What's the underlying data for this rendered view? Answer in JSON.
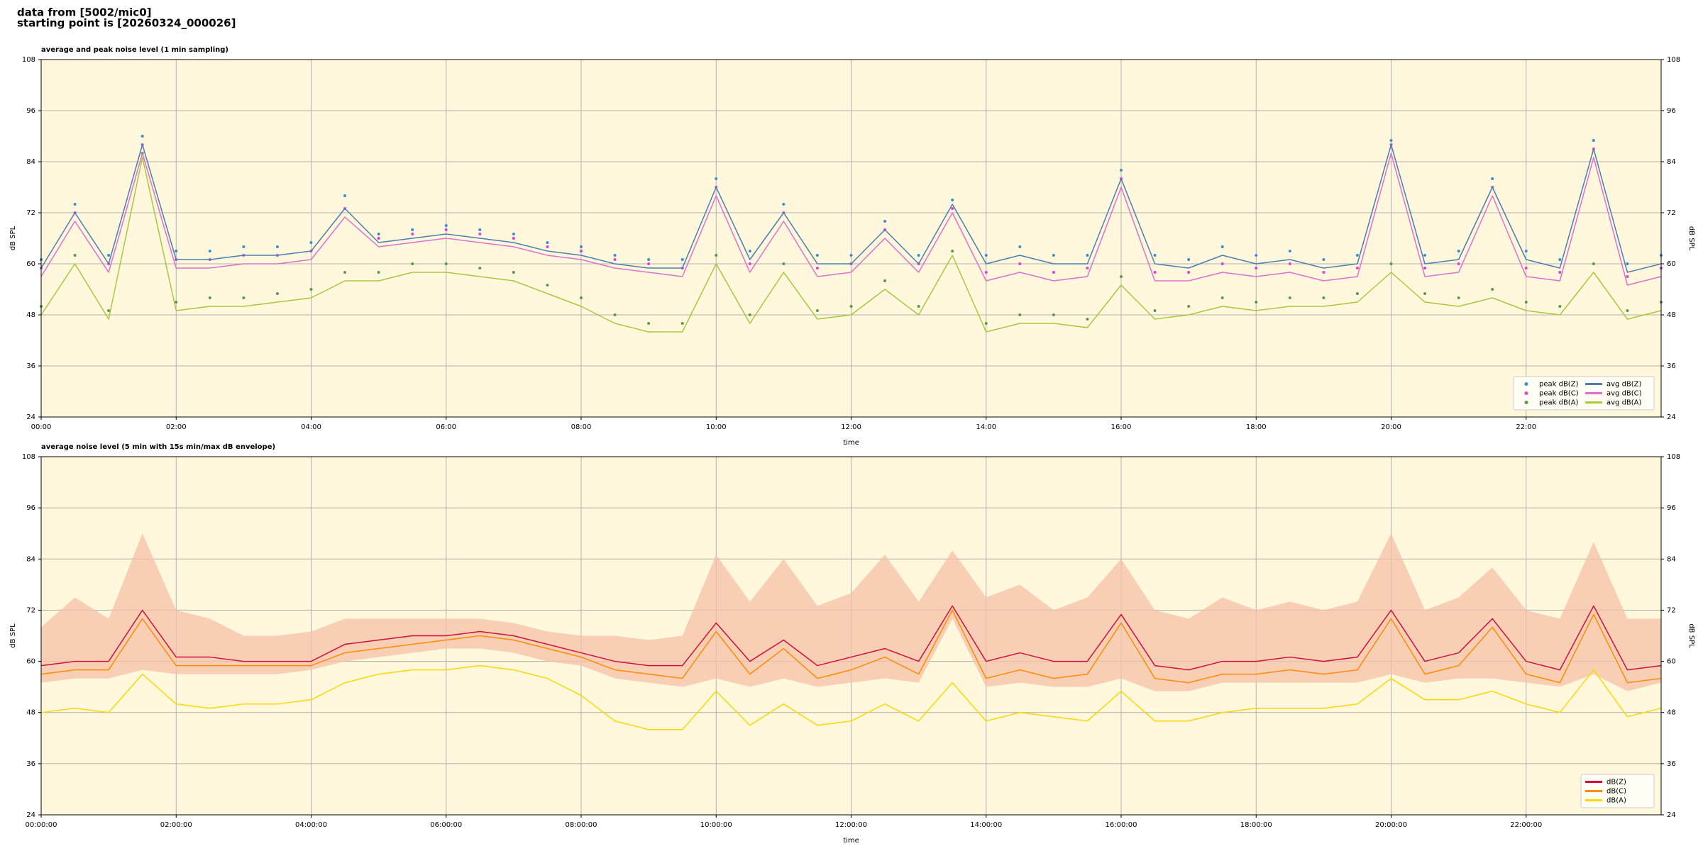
{
  "header": [
    "data from [5002/mic0]",
    "starting point is [20260324_000026]"
  ],
  "chart_data": [
    {
      "type": "line",
      "title": "average and peak noise level (1 min sampling)",
      "xlabel": "time",
      "ylabel": "dB SPL",
      "background": "#fff8dc",
      "grid": true,
      "legend": "lower right",
      "xlim": [
        0,
        24
      ],
      "ylim": [
        24,
        108
      ],
      "yticks": [
        24,
        36,
        48,
        60,
        72,
        84,
        96,
        108
      ],
      "xticks": [
        {
          "value": 0,
          "label": "00:00"
        },
        {
          "value": 2,
          "label": "02:00"
        },
        {
          "value": 4,
          "label": "04:00"
        },
        {
          "value": 6,
          "label": "06:00"
        },
        {
          "value": 8,
          "label": "08:00"
        },
        {
          "value": 10,
          "label": "10:00"
        },
        {
          "value": 12,
          "label": "12:00"
        },
        {
          "value": 14,
          "label": "14:00"
        },
        {
          "value": 16,
          "label": "16:00"
        },
        {
          "value": 18,
          "label": "18:00"
        },
        {
          "value": 20,
          "label": "20:00"
        },
        {
          "value": 22,
          "label": "22:00"
        }
      ],
      "x": [
        0,
        0.5,
        1,
        1.5,
        2,
        2.5,
        3,
        3.5,
        4,
        4.5,
        5,
        5.5,
        6,
        6.5,
        7,
        7.5,
        8,
        8.5,
        9,
        9.5,
        10,
        10.5,
        11,
        11.5,
        12,
        12.5,
        13,
        13.5,
        14,
        14.5,
        15,
        15.5,
        16,
        16.5,
        17,
        17.5,
        18,
        18.5,
        19,
        19.5,
        20,
        20.5,
        21,
        21.5,
        22,
        22.5,
        23,
        23.5,
        24
      ],
      "series": [
        {
          "name": "peak dB(Z)",
          "mark": "scatter",
          "color": "#3a8fd0",
          "values": [
            61,
            74,
            62,
            90,
            63,
            63,
            64,
            64,
            65,
            76,
            67,
            68,
            69,
            68,
            67,
            65,
            64,
            62,
            61,
            61,
            80,
            63,
            74,
            62,
            62,
            70,
            62,
            75,
            62,
            64,
            62,
            62,
            82,
            62,
            61,
            64,
            62,
            63,
            61,
            62,
            89,
            62,
            63,
            80,
            63,
            61,
            89,
            60,
            62
          ]
        },
        {
          "name": "peak dB(C)",
          "mark": "scatter",
          "color": "#e040d8",
          "values": [
            59,
            72,
            60,
            88,
            61,
            61,
            62,
            62,
            63,
            73,
            66,
            67,
            68,
            67,
            66,
            64,
            63,
            61,
            60,
            59,
            78,
            60,
            72,
            59,
            60,
            68,
            60,
            73,
            58,
            60,
            58,
            59,
            80,
            58,
            58,
            60,
            59,
            60,
            58,
            59,
            88,
            59,
            60,
            78,
            59,
            58,
            87,
            57,
            59
          ]
        },
        {
          "name": "peak dB(A)",
          "mark": "scatter",
          "color": "#5a9a4a",
          "values": [
            50,
            62,
            49,
            86,
            51,
            52,
            52,
            53,
            54,
            58,
            58,
            60,
            60,
            59,
            58,
            55,
            52,
            48,
            46,
            46,
            62,
            48,
            60,
            49,
            50,
            56,
            50,
            63,
            46,
            48,
            48,
            47,
            57,
            49,
            50,
            52,
            51,
            52,
            52,
            53,
            60,
            53,
            52,
            54,
            51,
            50,
            60,
            49,
            51
          ]
        },
        {
          "name": "avg dB(Z)",
          "mark": "line",
          "color": "#4a7fb0",
          "values": [
            59,
            72,
            60,
            88,
            61,
            61,
            62,
            62,
            63,
            73,
            65,
            66,
            67,
            66,
            65,
            63,
            62,
            60,
            59,
            59,
            78,
            61,
            72,
            60,
            60,
            68,
            60,
            74,
            60,
            62,
            60,
            60,
            80,
            60,
            59,
            62,
            60,
            61,
            59,
            60,
            88,
            60,
            61,
            78,
            61,
            59,
            87,
            58,
            60
          ]
        },
        {
          "name": "avg dB(C)",
          "mark": "line",
          "color": "#e070d0",
          "values": [
            57,
            70,
            58,
            86,
            59,
            59,
            60,
            60,
            61,
            71,
            64,
            65,
            66,
            65,
            64,
            62,
            61,
            59,
            58,
            57,
            76,
            58,
            70,
            57,
            58,
            66,
            58,
            72,
            56,
            58,
            56,
            57,
            78,
            56,
            56,
            58,
            57,
            58,
            56,
            57,
            86,
            57,
            58,
            76,
            57,
            56,
            85,
            55,
            57
          ]
        },
        {
          "name": "avg dB(A)",
          "mark": "line",
          "color": "#a8c83c",
          "values": [
            48,
            60,
            47,
            85,
            49,
            50,
            50,
            51,
            52,
            56,
            56,
            58,
            58,
            57,
            56,
            53,
            50,
            46,
            44,
            44,
            60,
            46,
            58,
            47,
            48,
            54,
            48,
            62,
            44,
            46,
            46,
            45,
            55,
            47,
            48,
            50,
            49,
            50,
            50,
            51,
            58,
            51,
            50,
            52,
            49,
            48,
            58,
            47,
            49
          ]
        }
      ]
    },
    {
      "type": "line",
      "title": "average noise level (5 min with 15s min/max dB envelope)",
      "xlabel": "time",
      "ylabel": "dB SPL",
      "background": "#fff8dc",
      "grid": true,
      "legend": "lower right",
      "xlim": [
        0,
        24
      ],
      "ylim": [
        24,
        108
      ],
      "yticks": [
        24,
        36,
        48,
        60,
        72,
        84,
        96,
        108
      ],
      "xticks": [
        {
          "value": 0,
          "label": "00:00:00"
        },
        {
          "value": 2,
          "label": "02:00:00"
        },
        {
          "value": 4,
          "label": "04:00:00"
        },
        {
          "value": 6,
          "label": "06:00:00"
        },
        {
          "value": 8,
          "label": "08:00:00"
        },
        {
          "value": 10,
          "label": "10:00:00"
        },
        {
          "value": 12,
          "label": "12:00:00"
        },
        {
          "value": 14,
          "label": "14:00:00"
        },
        {
          "value": 16,
          "label": "16:00:00"
        },
        {
          "value": 18,
          "label": "18:00:00"
        },
        {
          "value": 20,
          "label": "20:00:00"
        },
        {
          "value": 22,
          "label": "22:00:00"
        }
      ],
      "x": [
        0,
        0.5,
        1,
        1.5,
        2,
        2.5,
        3,
        3.5,
        4,
        4.5,
        5,
        5.5,
        6,
        6.5,
        7,
        7.5,
        8,
        8.5,
        9,
        9.5,
        10,
        10.5,
        11,
        11.5,
        12,
        12.5,
        13,
        13.5,
        14,
        14.5,
        15,
        15.5,
        16,
        16.5,
        17,
        17.5,
        18,
        18.5,
        19,
        19.5,
        20,
        20.5,
        21,
        21.5,
        22,
        22.5,
        23,
        23.5,
        24
      ],
      "envelope": {
        "color": "#f6c0a8",
        "upper": [
          68,
          75,
          70,
          90,
          72,
          70,
          66,
          66,
          67,
          70,
          70,
          70,
          70,
          70,
          69,
          67,
          66,
          66,
          65,
          66,
          85,
          74,
          84,
          73,
          76,
          85,
          74,
          86,
          75,
          78,
          72,
          75,
          84,
          72,
          70,
          75,
          72,
          74,
          72,
          74,
          90,
          72,
          75,
          82,
          72,
          70,
          88,
          70,
          70
        ],
        "lower": [
          55,
          56,
          56,
          58,
          57,
          57,
          57,
          57,
          58,
          60,
          61,
          62,
          63,
          63,
          62,
          60,
          59,
          56,
          55,
          54,
          56,
          54,
          56,
          54,
          55,
          56,
          55,
          70,
          54,
          55,
          54,
          54,
          56,
          53,
          53,
          55,
          55,
          55,
          55,
          55,
          57,
          55,
          56,
          56,
          55,
          54,
          57,
          53,
          55
        ]
      },
      "series": [
        {
          "name": "dB(Z)",
          "mark": "line",
          "color": "#d0103a",
          "values": [
            59,
            60,
            60,
            72,
            61,
            61,
            60,
            60,
            60,
            64,
            65,
            66,
            66,
            67,
            66,
            64,
            62,
            60,
            59,
            59,
            69,
            60,
            65,
            59,
            61,
            63,
            60,
            73,
            60,
            62,
            60,
            60,
            71,
            59,
            58,
            60,
            60,
            61,
            60,
            61,
            72,
            60,
            62,
            70,
            60,
            58,
            73,
            58,
            59
          ]
        },
        {
          "name": "dB(C)",
          "mark": "line",
          "color": "#ff8c00",
          "values": [
            57,
            58,
            58,
            70,
            59,
            59,
            59,
            59,
            59,
            62,
            63,
            64,
            65,
            66,
            65,
            63,
            61,
            58,
            57,
            56,
            67,
            57,
            63,
            56,
            58,
            61,
            57,
            72,
            56,
            58,
            56,
            57,
            69,
            56,
            55,
            57,
            57,
            58,
            57,
            58,
            70,
            57,
            59,
            68,
            57,
            55,
            71,
            55,
            56
          ]
        },
        {
          "name": "dB(A)",
          "mark": "line",
          "color": "#ffd700",
          "values": [
            48,
            49,
            48,
            57,
            50,
            49,
            50,
            50,
            51,
            55,
            57,
            58,
            58,
            59,
            58,
            56,
            52,
            46,
            44,
            44,
            53,
            45,
            50,
            45,
            46,
            50,
            46,
            55,
            46,
            48,
            47,
            46,
            53,
            46,
            46,
            48,
            49,
            49,
            49,
            50,
            56,
            51,
            51,
            53,
            50,
            48,
            58,
            47,
            49
          ]
        }
      ]
    }
  ]
}
